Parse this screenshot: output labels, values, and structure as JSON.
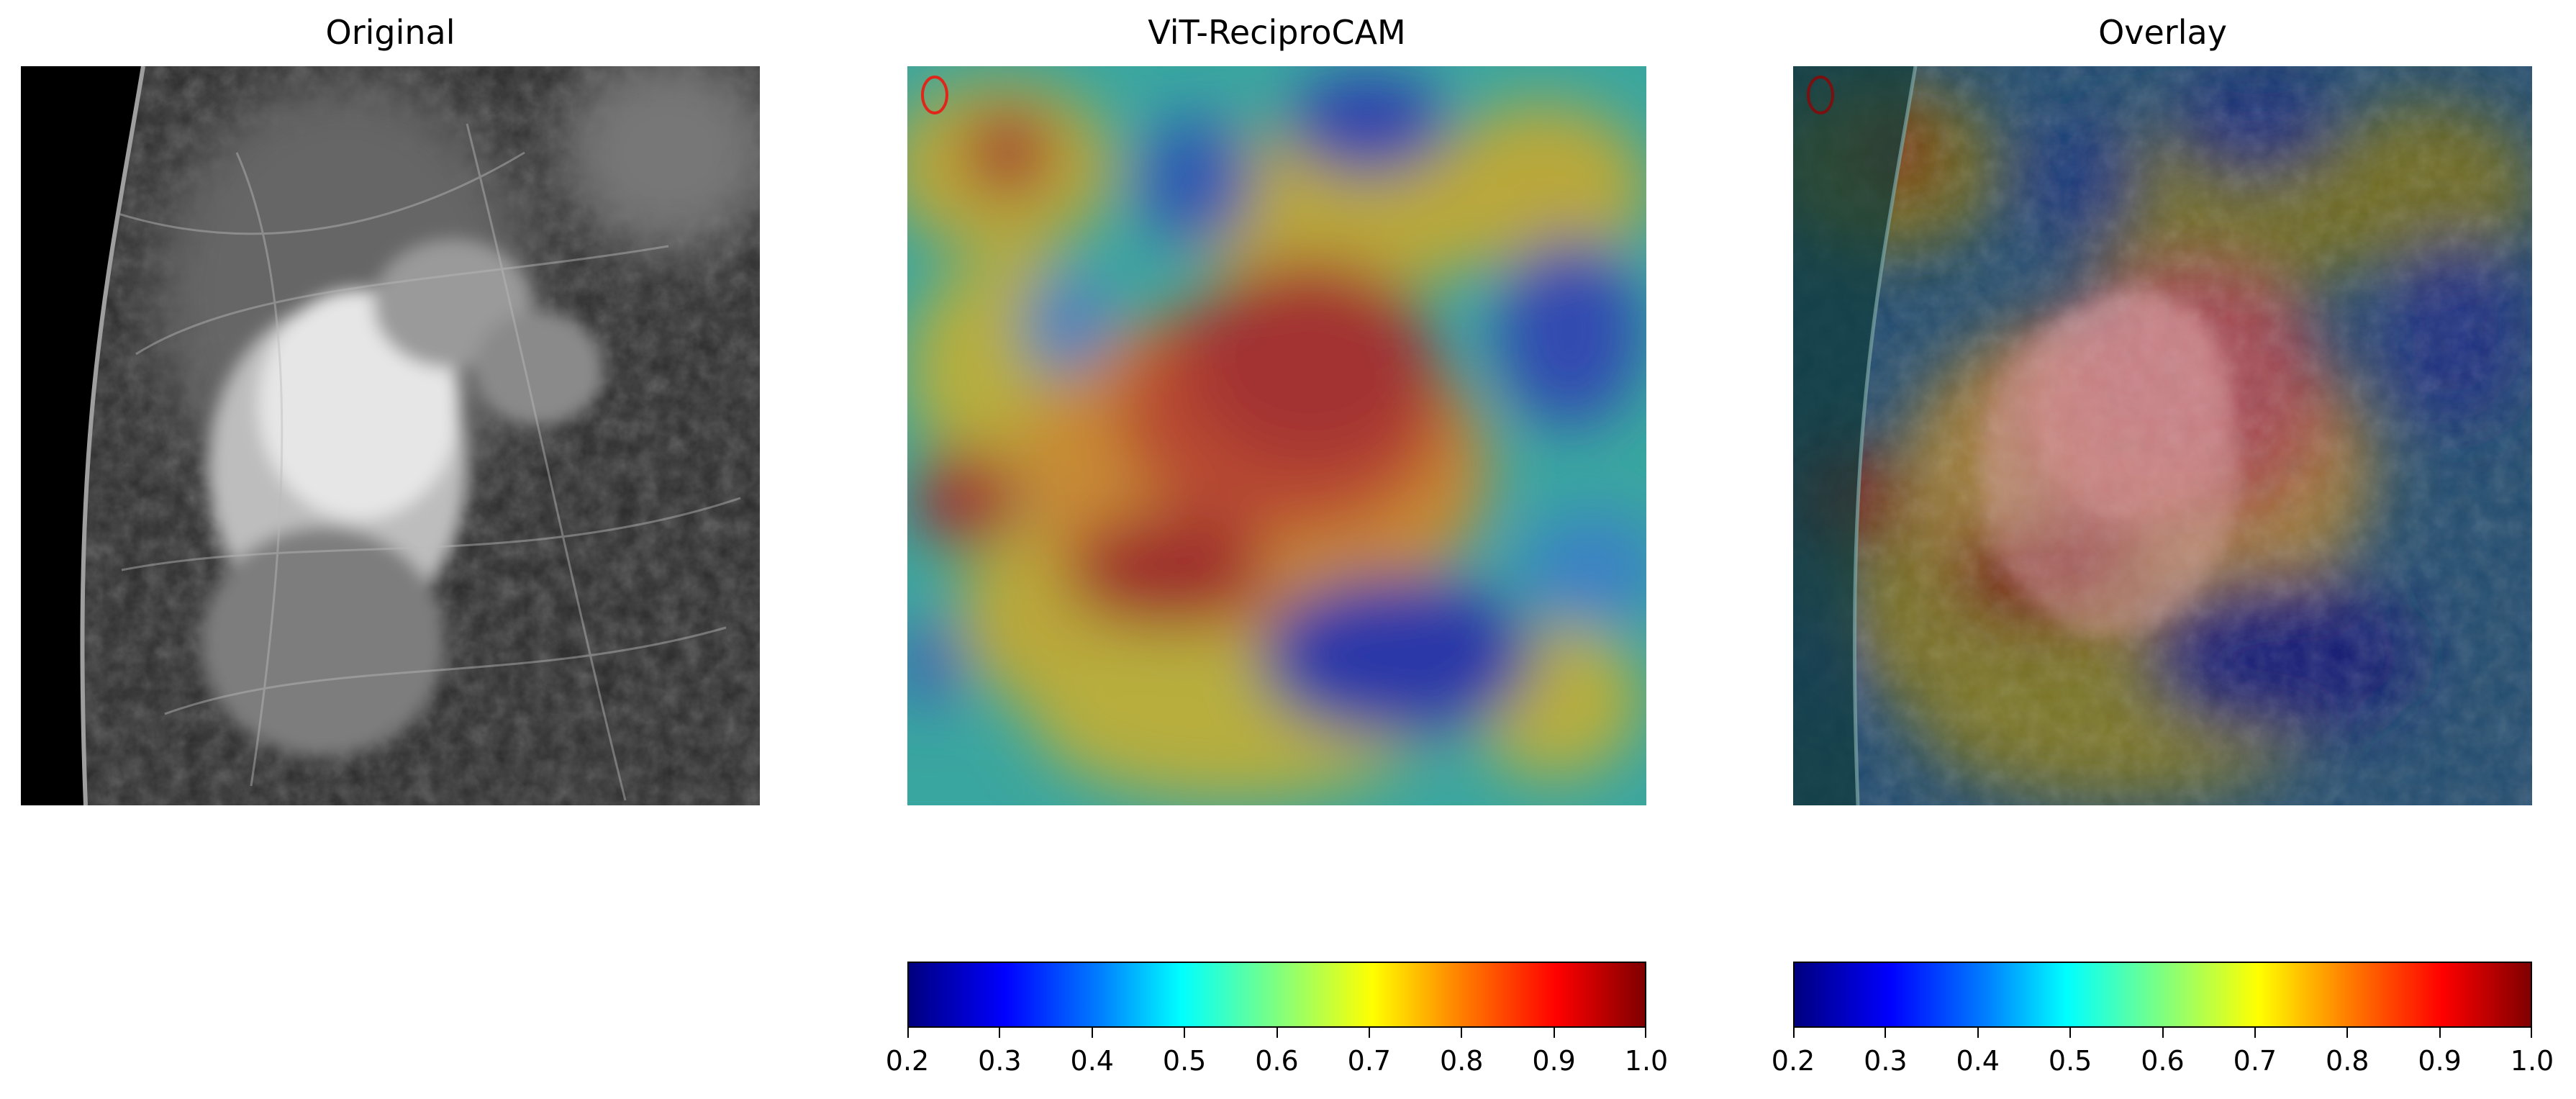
{
  "panels": [
    {
      "title": "Original"
    },
    {
      "title": "ViT-ReciproCAM"
    },
    {
      "title": "Overlay"
    }
  ],
  "colorbar": {
    "colormap": "jet",
    "min": 0.2,
    "max": 1.0,
    "ticks": [
      "0.2",
      "0.3",
      "0.4",
      "0.5",
      "0.6",
      "0.7",
      "0.8",
      "0.9",
      "1.0"
    ]
  },
  "colors": {
    "jet_low": "#00007f",
    "jet_mid": "#7fff7f",
    "jet_high": "#7f0000",
    "marker": "#e0261b"
  }
}
